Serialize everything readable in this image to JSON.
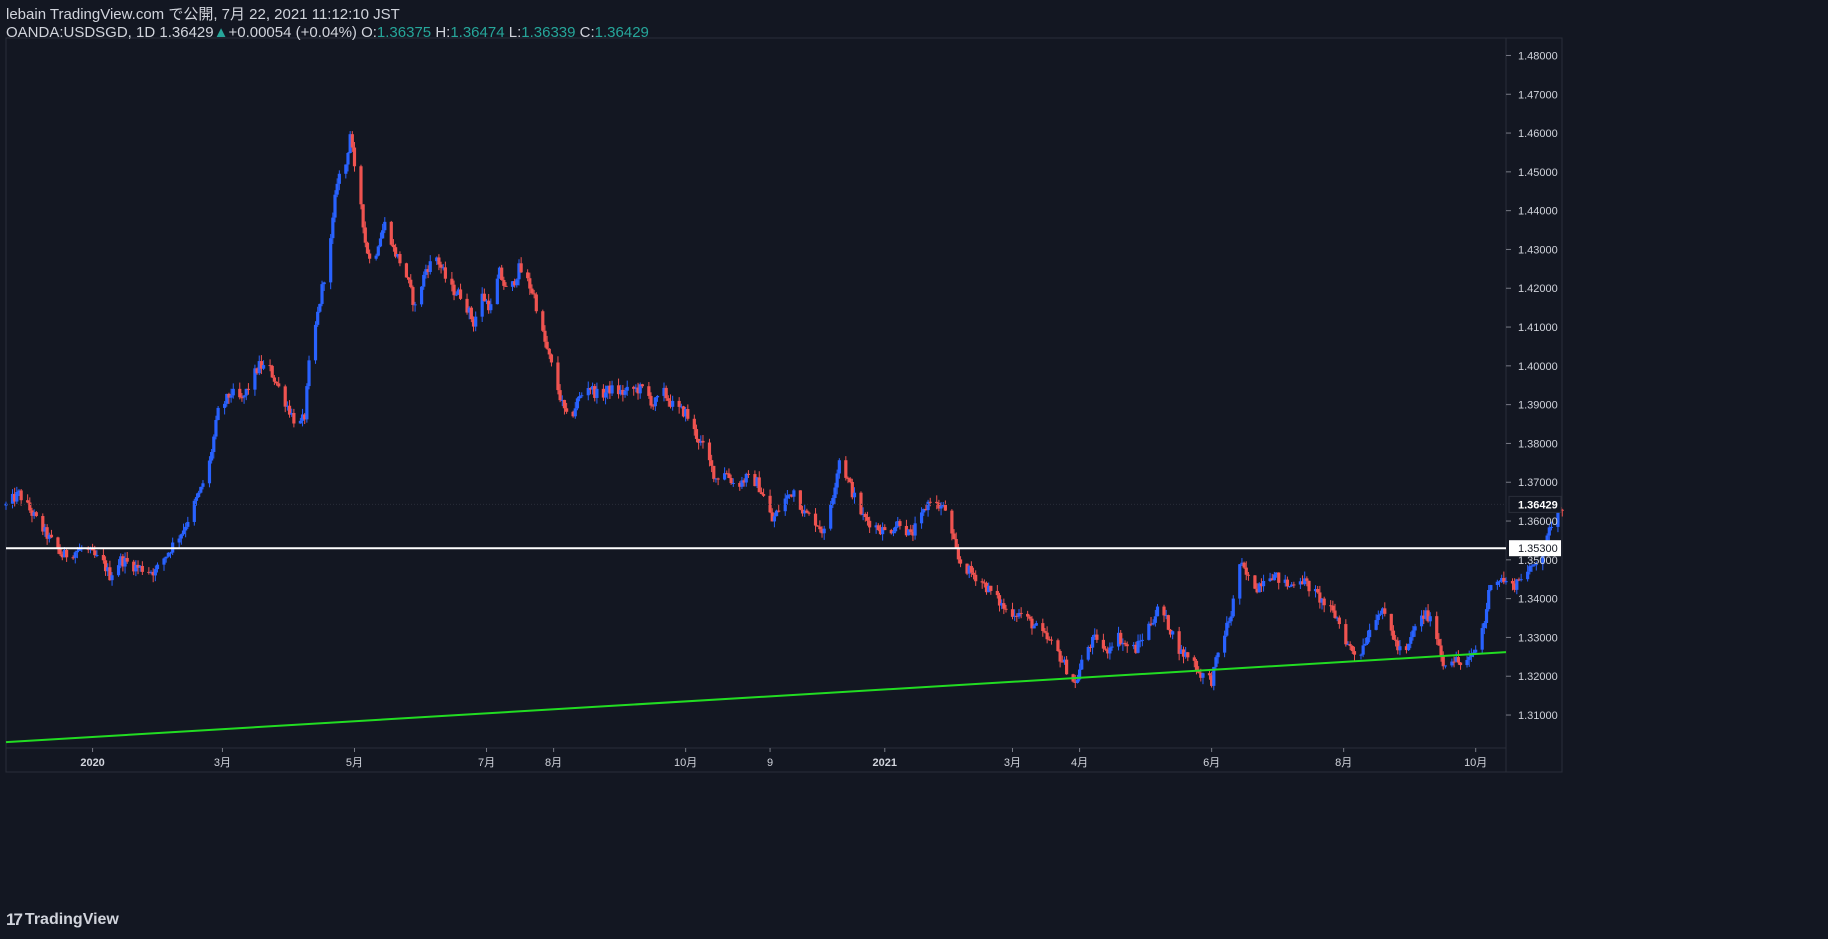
{
  "header": {
    "published_line": "lebain TradingView.com で公開, 7月 22, 2021 11:12:10 JST",
    "symbol": "OANDA:USDSGD, 1D",
    "last": "1.36429",
    "change_arrow": "▲",
    "change": "+0.00054 (+0.04%)",
    "o_label": "O:",
    "o_value": "1.36375",
    "h_label": "H:",
    "h_value": "1.36474",
    "l_label": "L:",
    "l_value": "1.36339",
    "c_label": "C:",
    "c_value": "1.36429"
  },
  "footer": {
    "logo_glyph": "17",
    "brand": "TradingView"
  },
  "colors": {
    "background": "#131722",
    "up": "#2962ff",
    "down": "#ef5350",
    "support": "#22dd22",
    "level": "#ffffff",
    "text": "#d1d4dc",
    "accent": "#26a69a"
  },
  "chart_data": {
    "type": "candlestick",
    "y_axis_ticks": [
      "1.48000",
      "1.47000",
      "1.46000",
      "1.45000",
      "1.44000",
      "1.43000",
      "1.42000",
      "1.41000",
      "1.40000",
      "1.39000",
      "1.38000",
      "1.37000",
      "1.36000",
      "1.35000",
      "1.34000",
      "1.33000",
      "1.32000",
      "1.31000"
    ],
    "x_axis_ticks": [
      {
        "label": "2020",
        "date": "2020-01-01"
      },
      {
        "label": "3月",
        "date": "2020-03-01"
      },
      {
        "label": "5月",
        "date": "2020-05-01"
      },
      {
        "label": "7月",
        "date": "2020-07-01"
      },
      {
        "label": "8月",
        "date": "2020-08-01"
      },
      {
        "label": "10月",
        "date": "2020-10-01"
      },
      {
        "label": "9",
        "date": "2020-11-09"
      },
      {
        "label": "2021",
        "date": "2021-01-01"
      },
      {
        "label": "3月",
        "date": "2021-03-01"
      },
      {
        "label": "4月",
        "date": "2021-04-01"
      },
      {
        "label": "6月",
        "date": "2021-06-01"
      },
      {
        "label": "8月",
        "date": "2021-08-01"
      },
      {
        "label": "10月",
        "date": "2021-10-01"
      }
    ],
    "last_price_label": "1.36429",
    "horizontal_level": {
      "price": 1.353,
      "label": "1.35300"
    },
    "trendline": {
      "start": {
        "date": "2019-11-22",
        "price": 1.303
      },
      "end": {
        "date": "2021-10-15",
        "price": 1.3262
      }
    },
    "y_range": [
      1.3015,
      1.4845
    ],
    "x_range": [
      "2019-11-22",
      "2021-10-15"
    ],
    "path": [
      [
        "2019-11-22",
        1.364
      ],
      [
        "2019-11-28",
        1.367
      ],
      [
        "2019-12-10",
        1.357
      ],
      [
        "2019-12-18",
        1.351
      ],
      [
        "2019-12-28",
        1.353
      ],
      [
        "2020-01-06",
        1.349
      ],
      [
        "2020-01-09",
        1.346
      ],
      [
        "2020-01-14",
        1.35
      ],
      [
        "2020-01-22",
        1.348
      ],
      [
        "2020-01-30",
        1.347
      ],
      [
        "2020-02-06",
        1.353
      ],
      [
        "2020-02-12",
        1.358
      ],
      [
        "2020-02-20",
        1.368
      ],
      [
        "2020-02-24",
        1.375
      ],
      [
        "2020-02-28",
        1.388
      ],
      [
        "2020-03-05",
        1.393
      ],
      [
        "2020-03-10",
        1.391
      ],
      [
        "2020-03-16",
        1.398
      ],
      [
        "2020-03-18",
        1.4
      ],
      [
        "2020-03-23",
        1.399
      ],
      [
        "2020-03-29",
        1.392
      ],
      [
        "2020-04-05",
        1.384
      ],
      [
        "2020-04-08",
        1.387
      ],
      [
        "2020-04-10",
        1.4
      ],
      [
        "2020-04-13",
        1.41
      ],
      [
        "2020-04-16",
        1.42
      ],
      [
        "2020-04-20",
        1.432
      ],
      [
        "2020-04-23",
        1.448
      ],
      [
        "2020-04-27",
        1.452
      ],
      [
        "2020-04-29",
        1.46
      ],
      [
        "2020-05-01",
        1.45
      ],
      [
        "2020-05-03",
        1.447
      ],
      [
        "2020-05-06",
        1.432
      ],
      [
        "2020-05-09",
        1.425
      ],
      [
        "2020-05-12",
        1.432
      ],
      [
        "2020-05-16",
        1.438
      ],
      [
        "2020-05-19",
        1.43
      ],
      [
        "2020-05-24",
        1.425
      ],
      [
        "2020-05-29",
        1.415
      ],
      [
        "2020-06-03",
        1.425
      ],
      [
        "2020-06-08",
        1.428
      ],
      [
        "2020-06-14",
        1.42
      ],
      [
        "2020-06-20",
        1.418
      ],
      [
        "2020-06-25",
        1.411
      ],
      [
        "2020-06-29",
        1.418
      ],
      [
        "2020-07-03",
        1.415
      ],
      [
        "2020-07-07",
        1.424
      ],
      [
        "2020-07-11",
        1.418
      ],
      [
        "2020-07-16",
        1.425
      ],
      [
        "2020-07-19",
        1.423
      ],
      [
        "2020-07-23",
        1.418
      ],
      [
        "2020-07-27",
        1.408
      ],
      [
        "2020-08-01",
        1.398
      ],
      [
        "2020-08-05",
        1.39
      ],
      [
        "2020-08-08",
        1.385
      ],
      [
        "2020-08-12",
        1.391
      ],
      [
        "2020-08-17",
        1.395
      ],
      [
        "2020-08-22",
        1.392
      ],
      [
        "2020-08-27",
        1.394
      ],
      [
        "2020-09-02",
        1.393
      ],
      [
        "2020-09-07",
        1.394
      ],
      [
        "2020-09-12",
        1.394
      ],
      [
        "2020-09-16",
        1.39
      ],
      [
        "2020-09-21",
        1.393
      ],
      [
        "2020-09-26",
        1.389
      ],
      [
        "2020-10-01",
        1.388
      ],
      [
        "2020-10-05",
        1.383
      ],
      [
        "2020-10-09",
        1.379
      ],
      [
        "2020-10-12",
        1.375
      ],
      [
        "2020-10-15",
        1.371
      ],
      [
        "2020-10-19",
        1.373
      ],
      [
        "2020-10-24",
        1.369
      ],
      [
        "2020-10-29",
        1.371
      ],
      [
        "2020-11-03",
        1.37
      ],
      [
        "2020-11-07",
        1.365
      ],
      [
        "2020-11-10",
        1.36
      ],
      [
        "2020-11-15",
        1.365
      ],
      [
        "2020-11-20",
        1.368
      ],
      [
        "2020-11-25",
        1.362
      ],
      [
        "2020-11-30",
        1.36
      ],
      [
        "2020-12-04",
        1.357
      ],
      [
        "2020-12-08",
        1.367
      ],
      [
        "2020-12-11",
        1.376
      ],
      [
        "2020-12-14",
        1.372
      ],
      [
        "2020-12-18",
        1.366
      ],
      [
        "2020-12-22",
        1.361
      ],
      [
        "2020-12-27",
        1.359
      ],
      [
        "2021-01-02",
        1.357
      ],
      [
        "2021-01-08",
        1.36
      ],
      [
        "2021-01-13",
        1.356
      ],
      [
        "2021-01-18",
        1.361
      ],
      [
        "2021-01-22",
        1.366
      ],
      [
        "2021-01-25",
        1.364
      ],
      [
        "2021-01-29",
        1.363
      ],
      [
        "2021-02-01",
        1.356
      ],
      [
        "2021-02-04",
        1.35
      ],
      [
        "2021-02-09",
        1.347
      ],
      [
        "2021-02-14",
        1.345
      ],
      [
        "2021-02-20",
        1.341
      ],
      [
        "2021-02-26",
        1.337
      ],
      [
        "2021-03-05",
        1.336
      ],
      [
        "2021-03-11",
        1.333
      ],
      [
        "2021-03-16",
        1.33
      ],
      [
        "2021-03-21",
        1.327
      ],
      [
        "2021-03-26",
        1.322
      ],
      [
        "2021-03-30",
        1.318
      ],
      [
        "2021-04-04",
        1.327
      ],
      [
        "2021-04-09",
        1.33
      ],
      [
        "2021-04-13",
        1.326
      ],
      [
        "2021-04-18",
        1.331
      ],
      [
        "2021-04-22",
        1.328
      ],
      [
        "2021-04-27",
        1.327
      ],
      [
        "2021-05-02",
        1.332
      ],
      [
        "2021-05-08",
        1.338
      ],
      [
        "2021-05-13",
        1.332
      ],
      [
        "2021-05-18",
        1.326
      ],
      [
        "2021-05-23",
        1.325
      ],
      [
        "2021-05-26",
        1.321
      ],
      [
        "2021-06-01",
        1.319
      ],
      [
        "2021-06-05",
        1.328
      ],
      [
        "2021-06-10",
        1.336
      ],
      [
        "2021-06-14",
        1.349
      ],
      [
        "2021-06-18",
        1.345
      ],
      [
        "2021-06-22",
        1.343
      ],
      [
        "2021-06-27",
        1.347
      ],
      [
        "2021-07-02",
        1.345
      ],
      [
        "2021-07-07",
        1.343
      ],
      [
        "2021-07-11",
        1.346
      ],
      [
        "2021-07-16",
        1.343
      ],
      [
        "2021-07-21",
        1.34
      ],
      [
        "2021-07-24",
        1.338
      ],
      [
        "2021-07-29",
        1.335
      ],
      [
        "2021-08-03",
        1.328
      ],
      [
        "2021-08-08",
        1.325
      ],
      [
        "2021-08-12",
        1.331
      ],
      [
        "2021-08-17",
        1.337
      ],
      [
        "2021-08-21",
        1.335
      ],
      [
        "2021-08-26",
        1.327
      ],
      [
        "2021-08-30",
        1.326
      ],
      [
        "2021-09-03",
        1.333
      ],
      [
        "2021-09-08",
        1.336
      ],
      [
        "2021-09-13",
        1.331
      ],
      [
        "2021-09-16",
        1.323
      ],
      [
        "2021-09-20",
        1.325
      ],
      [
        "2021-09-24",
        1.323
      ],
      [
        "2021-09-28",
        1.324
      ],
      [
        "2021-10-01",
        1.327
      ],
      [
        "2021-10-05",
        1.334
      ],
      [
        "2021-10-08",
        1.345
      ],
      [
        "2021-10-13",
        1.345
      ],
      [
        "2021-10-18",
        1.343
      ],
      [
        "2021-10-22",
        1.346
      ],
      [
        "2021-10-26",
        1.347
      ],
      [
        "2021-10-30",
        1.351
      ],
      [
        "2021-11-03",
        1.355
      ],
      [
        "2021-11-07",
        1.364
      ],
      [
        "2021-11-10",
        1.364
      ]
    ]
  }
}
